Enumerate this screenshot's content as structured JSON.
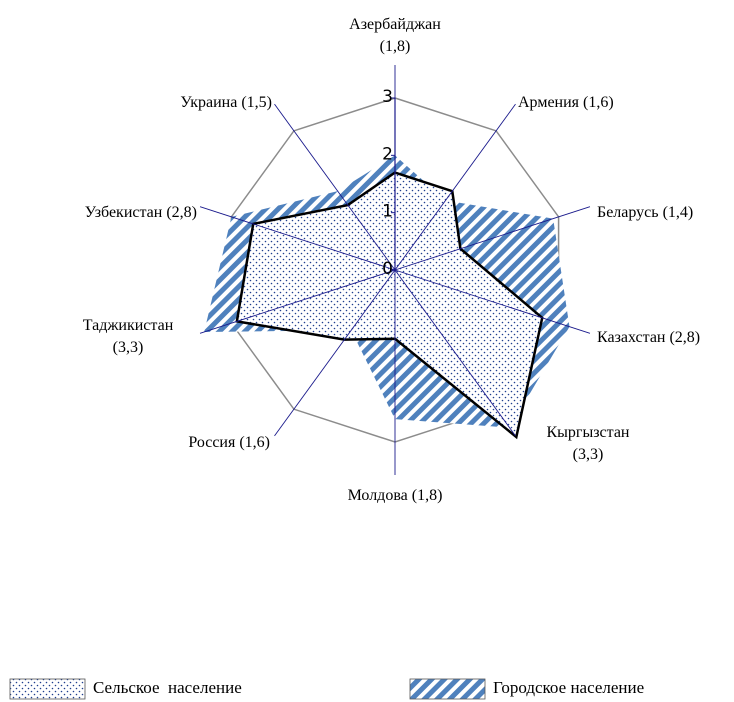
{
  "chart_data": {
    "type": "radar",
    "categories": [
      "Азербайджан (1,8)",
      "Армения (1,6)",
      "Беларусь (1,4)",
      "Казахстан (2,8)",
      "Кыргызстан (3,3)",
      "Молдова (1,8)",
      "Россия (1,6)",
      "Таджикистан (3,3)",
      "Узбекистан (2,8)",
      "Украина (1,5)"
    ],
    "series": [
      {
        "name": "Сельское  население",
        "color": "#000000",
        "values": [
          1.7,
          1.7,
          1.2,
          2.7,
          3.6,
          1.2,
          1.5,
          2.9,
          2.6,
          1.4
        ]
      },
      {
        "name": "Городское население",
        "color": "#4f81bd",
        "values": [
          2.0,
          1.5,
          2.9,
          3.2,
          3.4,
          2.6,
          1.3,
          3.5,
          3.0,
          1.7
        ]
      }
    ],
    "ylim": [
      0,
      3
    ],
    "yticks": [
      0,
      1,
      2,
      3
    ],
    "grid": true
  }
}
